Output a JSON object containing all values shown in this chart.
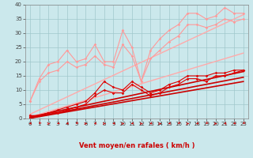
{
  "xlabel": "Vent moyen/en rafales ( km/h )",
  "background_color": "#cbe8ec",
  "grid_color": "#a0c8cc",
  "xlim": [
    -0.5,
    23.5
  ],
  "ylim": [
    0,
    40
  ],
  "xticks": [
    0,
    1,
    2,
    3,
    4,
    5,
    6,
    7,
    8,
    9,
    10,
    11,
    12,
    13,
    14,
    15,
    16,
    17,
    18,
    19,
    20,
    21,
    22,
    23
  ],
  "yticks": [
    0,
    5,
    10,
    15,
    20,
    25,
    30,
    35,
    40
  ],
  "series_light_noisy1": {
    "x": [
      0,
      1,
      2,
      3,
      4,
      5,
      6,
      7,
      8,
      9,
      10,
      11,
      12,
      13,
      14,
      15,
      16,
      17,
      18,
      19,
      20,
      21,
      22,
      23
    ],
    "y": [
      6,
      14,
      19,
      20,
      24,
      20,
      21,
      26,
      20,
      20,
      31,
      25,
      13,
      24,
      28,
      31,
      33,
      37,
      37,
      35,
      36,
      39,
      37,
      37
    ],
    "color": "#ff9999",
    "lw": 0.8,
    "marker": "D",
    "ms": 1.8
  },
  "series_light_noisy2": {
    "x": [
      0,
      1,
      2,
      3,
      4,
      5,
      6,
      7,
      8,
      9,
      10,
      11,
      12,
      13,
      14,
      15,
      16,
      17,
      18,
      19,
      20,
      21,
      22,
      23
    ],
    "y": [
      6,
      13,
      16,
      17,
      20,
      18,
      19,
      22,
      19,
      18,
      26,
      22,
      13,
      21,
      24,
      27,
      29,
      33,
      33,
      32,
      33,
      35,
      34,
      35
    ],
    "color": "#ff9999",
    "lw": 0.8,
    "marker": "D",
    "ms": 1.8
  },
  "series_light_trend1": {
    "x": [
      0,
      23
    ],
    "y": [
      0.5,
      23.0
    ],
    "color": "#ffaaaa",
    "lw": 1.0
  },
  "series_light_trend2": {
    "x": [
      0,
      23
    ],
    "y": [
      1.5,
      36.5
    ],
    "color": "#ffaaaa",
    "lw": 1.0
  },
  "series_dark_noisy1": {
    "x": [
      0,
      1,
      2,
      3,
      4,
      5,
      6,
      7,
      8,
      9,
      10,
      11,
      12,
      13,
      14,
      15,
      16,
      17,
      18,
      19,
      20,
      21,
      22,
      23
    ],
    "y": [
      1,
      1,
      2,
      3,
      4,
      5,
      6,
      9,
      13,
      11,
      10,
      13,
      11,
      9,
      10,
      12,
      13,
      15,
      15,
      15,
      16,
      16,
      17,
      17
    ],
    "color": "#dd0000",
    "lw": 0.8,
    "marker": "D",
    "ms": 1.8
  },
  "series_dark_noisy2": {
    "x": [
      0,
      1,
      2,
      3,
      4,
      5,
      6,
      7,
      8,
      9,
      10,
      11,
      12,
      13,
      14,
      15,
      16,
      17,
      18,
      19,
      20,
      21,
      22,
      23
    ],
    "y": [
      1,
      1,
      2,
      2,
      3,
      4,
      5,
      8,
      10,
      9,
      9,
      12,
      10,
      8,
      9,
      11,
      12,
      14,
      14,
      13,
      15,
      15,
      16,
      17
    ],
    "color": "#dd0000",
    "lw": 0.8,
    "marker": "D",
    "ms": 1.8
  },
  "series_dark_trend1": {
    "x": [
      0,
      23
    ],
    "y": [
      0.5,
      16.5
    ],
    "color": "#cc0000",
    "lw": 1.2
  },
  "series_dark_trend2": {
    "x": [
      0,
      23
    ],
    "y": [
      0.2,
      14.5
    ],
    "color": "#cc0000",
    "lw": 1.2
  },
  "series_dark_trend3": {
    "x": [
      0,
      23
    ],
    "y": [
      0.1,
      13.0
    ],
    "color": "#cc0000",
    "lw": 1.2
  },
  "wind_arrow_angles": [
    225,
    200,
    90,
    215,
    225,
    200,
    90,
    225,
    90,
    225,
    90,
    225,
    90,
    225,
    90,
    225,
    200,
    90,
    225,
    200,
    90,
    225,
    215,
    200
  ],
  "wind_arrow_color": "#cc0000",
  "xlabel_color": "#cc0000",
  "xlabel_fontsize": 6,
  "tick_fontsize": 5
}
